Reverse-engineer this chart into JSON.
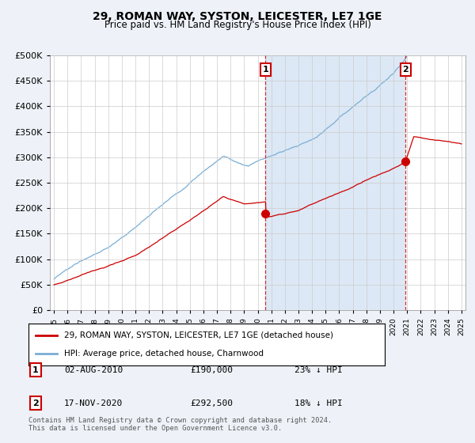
{
  "title": "29, ROMAN WAY, SYSTON, LEICESTER, LE7 1GE",
  "subtitle": "Price paid vs. HM Land Registry's House Price Index (HPI)",
  "ylim": [
    0,
    500000
  ],
  "yticks": [
    0,
    50000,
    100000,
    150000,
    200000,
    250000,
    300000,
    350000,
    400000,
    450000,
    500000
  ],
  "xlim_start": 1994.7,
  "xlim_end": 2025.3,
  "red_line_label": "29, ROMAN WAY, SYSTON, LEICESTER, LE7 1GE (detached house)",
  "blue_line_label": "HPI: Average price, detached house, Charnwood",
  "marker1_x": 2010.58,
  "marker1_y": 190000,
  "marker1_label": "1",
  "marker1_date": "02-AUG-2010",
  "marker1_price": "£190,000",
  "marker1_hpi": "23% ↓ HPI",
  "marker2_x": 2020.88,
  "marker2_y": 292500,
  "marker2_label": "2",
  "marker2_date": "17-NOV-2020",
  "marker2_price": "£292,500",
  "marker2_hpi": "18% ↓ HPI",
  "footer": "Contains HM Land Registry data © Crown copyright and database right 2024.\nThis data is licensed under the Open Government Licence v3.0.",
  "background_color": "#eef2f8",
  "plot_bg_color": "#ffffff",
  "shade_color": "#dce8f5",
  "grid_color": "#cccccc",
  "red_color": "#cc0000",
  "blue_color": "#7aaed6"
}
